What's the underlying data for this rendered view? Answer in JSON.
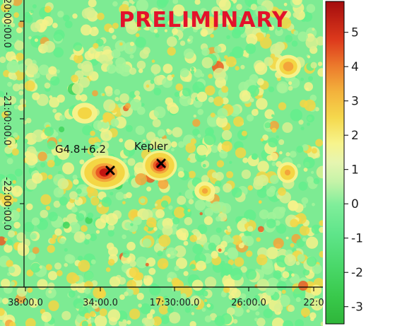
{
  "chart_data": {
    "type": "heatmap",
    "title": "",
    "watermark": "PRELIMINARY",
    "x_ticks": [
      "38:00.0",
      "34:00.0",
      "17:30:00.0",
      "26:00.0",
      "22:0"
    ],
    "y_ticks": [
      "-20:00:00.0",
      "-21:00:00.0",
      "-22:00:00.0"
    ],
    "colorbar": {
      "range": [
        -3.5,
        5.9
      ],
      "ticks": [
        5,
        4,
        3,
        2,
        1,
        0,
        -1,
        -2,
        -3
      ],
      "tick_labels": [
        "5",
        "4",
        "3",
        "2",
        "1",
        "0",
        "-1",
        "-2",
        "-3"
      ],
      "colormap": [
        "#32b83a",
        "#3fd65a",
        "#63ee8c",
        "#a2f39a",
        "#d8f090",
        "#f6f28a",
        "#f4d644",
        "#f3a53a",
        "#ea5c24",
        "#c21510",
        "#a00d0d"
      ]
    },
    "sources": [
      {
        "label": "G4.8+6.2",
        "marker": "x",
        "peak_value": 4.5
      },
      {
        "label": "Kepler",
        "marker": "x",
        "peak_value": 4.6
      }
    ],
    "background_level": 0.3,
    "grid": false
  },
  "colors": {
    "watermark": "#e3122b",
    "marker": "#000000",
    "axis_line": "#000000"
  }
}
